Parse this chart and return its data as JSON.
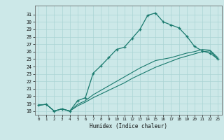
{
  "xlabel": "Humidex (Indice chaleur)",
  "ylabel": "",
  "bg_color": "#cce8e8",
  "line_color": "#1a7a6e",
  "grid_color": "#aad4d4",
  "xlim": [
    -0.5,
    23.5
  ],
  "ylim": [
    17.5,
    32.2
  ],
  "xticks": [
    0,
    1,
    2,
    3,
    4,
    5,
    6,
    7,
    8,
    9,
    10,
    11,
    12,
    13,
    14,
    15,
    16,
    17,
    18,
    19,
    20,
    21,
    22,
    23
  ],
  "yticks": [
    18,
    19,
    20,
    21,
    22,
    23,
    24,
    25,
    26,
    27,
    28,
    29,
    30,
    31
  ],
  "curve1_x": [
    0,
    1,
    2,
    3,
    4,
    5,
    6,
    7,
    8,
    9,
    10,
    11,
    12,
    13,
    14,
    15,
    16,
    17,
    18,
    19,
    20,
    21,
    22,
    23
  ],
  "curve1_y": [
    18.8,
    18.9,
    18.0,
    18.3,
    18.0,
    19.4,
    19.8,
    23.1,
    24.1,
    25.2,
    26.3,
    26.6,
    27.8,
    29.0,
    30.9,
    31.2,
    30.0,
    29.6,
    29.2,
    28.1,
    26.7,
    26.1,
    25.8,
    25.0
  ],
  "curve2_x": [
    0,
    1,
    2,
    3,
    4,
    5,
    6,
    7,
    8,
    9,
    10,
    11,
    12,
    13,
    14,
    15,
    16,
    17,
    18,
    19,
    20,
    21,
    22,
    23
  ],
  "curve2_y": [
    18.8,
    18.9,
    18.0,
    18.3,
    18.0,
    18.7,
    19.2,
    19.8,
    20.3,
    20.8,
    21.3,
    21.8,
    22.4,
    22.9,
    23.4,
    23.9,
    24.3,
    24.7,
    25.1,
    25.4,
    25.7,
    26.0,
    26.1,
    25.0
  ],
  "curve3_x": [
    0,
    1,
    2,
    3,
    4,
    5,
    6,
    7,
    8,
    9,
    10,
    11,
    12,
    13,
    14,
    15,
    16,
    17,
    18,
    19,
    20,
    21,
    22,
    23
  ],
  "curve3_y": [
    18.8,
    18.9,
    18.0,
    18.3,
    18.0,
    18.9,
    19.4,
    20.2,
    20.8,
    21.4,
    22.0,
    22.6,
    23.2,
    23.8,
    24.3,
    24.8,
    25.0,
    25.2,
    25.5,
    25.8,
    26.0,
    26.3,
    26.2,
    25.2
  ]
}
